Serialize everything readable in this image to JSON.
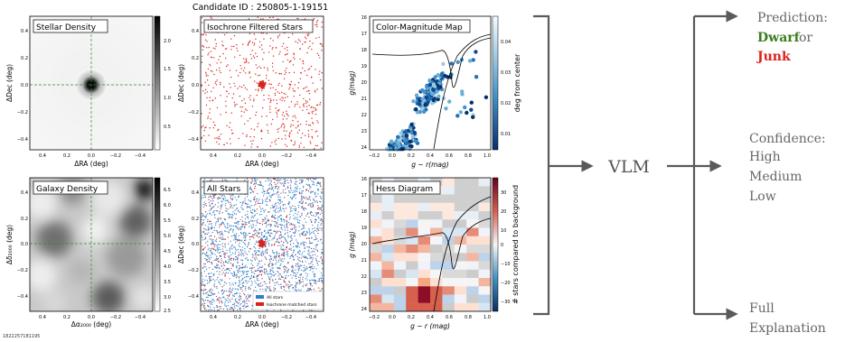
{
  "header": {
    "candidate_id": "Candidate ID : 250805-1-19151"
  },
  "footer": {
    "object_id": "1822257181195"
  },
  "panels": {
    "stellar_density": {
      "title": "Stellar Density",
      "xlabel": "ΔRA (deg)",
      "ylabel": "ΔDec (deg)",
      "xticks": [
        "0.4",
        "0.2",
        "0.0",
        "−0.2",
        "−0.4"
      ],
      "yticks": [
        "0.4",
        "0.2",
        "0.0",
        "−0.2",
        "−0.4"
      ],
      "colorbar_ticks": [
        "2.0",
        "1.5",
        "1.0",
        "0.5"
      ]
    },
    "isochrone": {
      "title": "Isochrone Filtered Stars",
      "xlabel": "ΔRA (deg)",
      "ylabel": "ΔDec (deg)",
      "xticks": [
        "0.4",
        "0.2",
        "0.0",
        "−0.2",
        "−0.4"
      ],
      "yticks": [
        "0.4",
        "0.2",
        "0.0",
        "−0.2",
        "−0.4"
      ]
    },
    "cmd": {
      "title": "Color-Magnitude Map",
      "xlabel": "g − r(mag)",
      "ylabel": "g(mag)",
      "colorbar_label": "deg from center",
      "xticks": [
        "−0.2",
        "0.0",
        "0.2",
        "0.4",
        "0.6",
        "0.8",
        "1.0"
      ],
      "yticks": [
        "16",
        "17",
        "18",
        "19",
        "20",
        "21",
        "22",
        "23",
        "24"
      ],
      "colorbar_ticks": [
        "0.04",
        "0.03",
        "0.02",
        "0.01"
      ]
    },
    "galaxy_density": {
      "title": "Galaxy Density",
      "xlabel": "Δα₂₀₀₀ (deg)",
      "ylabel": "Δδ₂₀₀₀ (deg)",
      "xticks": [
        "0.4",
        "0.2",
        "0.0",
        "−0.2",
        "−0.4"
      ],
      "yticks": [
        "0.4",
        "0.2",
        "0.0",
        "−0.2",
        "−0.4"
      ],
      "colorbar_ticks": [
        "6.5",
        "6.0",
        "5.5",
        "5.0",
        "4.5",
        "4.0",
        "3.5",
        "3.0",
        "2.5"
      ]
    },
    "all_stars": {
      "title": "All Stars",
      "xlabel": "ΔRA (deg)",
      "ylabel": "ΔDec (deg)",
      "xticks": [
        "0.4",
        "0.2",
        "0.0",
        "−0.2",
        "−0.4"
      ],
      "yticks": [
        "0.4",
        "0.2",
        "0.0",
        "−0.2",
        "−0.4"
      ],
      "legend": [
        "All stars",
        "Isochrone matched stars"
      ]
    },
    "hess": {
      "title": "Hess Diagram",
      "xlabel": "g − r (mag)",
      "ylabel": "g (mag)",
      "colorbar_label": "# stars compared to background",
      "xticks": [
        "−0.2",
        "0.0",
        "0.2",
        "0.4",
        "0.6",
        "0.8",
        "1.0"
      ],
      "yticks": [
        "16",
        "17",
        "18",
        "19",
        "20",
        "21",
        "22",
        "23",
        "24"
      ],
      "colorbar_ticks": [
        "30",
        "20",
        "10",
        "0",
        "−10",
        "−20",
        "−30"
      ]
    }
  },
  "flow": {
    "vlm": "VLM",
    "prediction_label": "Prediction:",
    "prediction_dwarf": "Dwarf",
    "prediction_or": " or",
    "prediction_junk": "Junk",
    "confidence_label": "Confidence:",
    "confidence_levels": [
      "High",
      "Medium",
      "Low"
    ],
    "full_label": "Full",
    "explanation_label": "Explanation"
  },
  "colors": {
    "dwarf": "#3a7d1e",
    "junk": "#e0201b",
    "text_gray": "#666666",
    "arrow_gray": "#5a5a5a",
    "crosshair": "#2e8b2e",
    "all_stars_blue": "#2f7ec8",
    "isochrone_red": "#d8241c"
  }
}
